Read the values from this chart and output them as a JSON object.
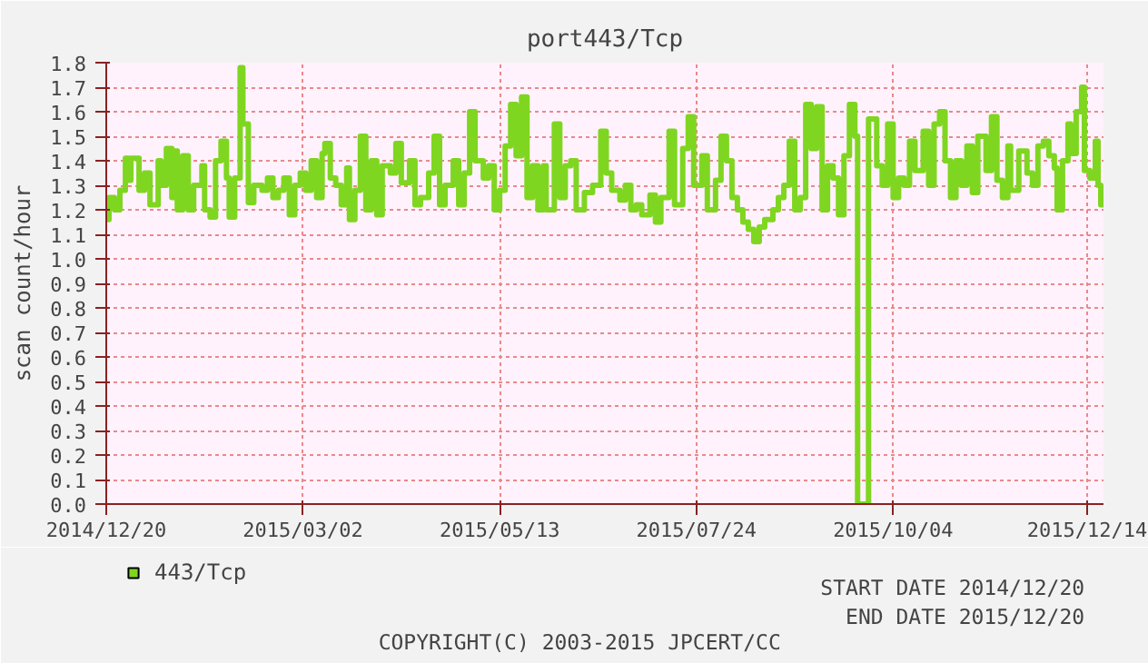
{
  "chart_data": {
    "type": "step",
    "title": "port443/Tcp",
    "ylabel": "scan count/hour",
    "xlim": [
      "2014-12-20",
      "2015-12-20"
    ],
    "xticks": [
      {
        "value": "2014-12-20",
        "label": "2014/12/20"
      },
      {
        "value": "2015-03-02",
        "label": "2015/03/02"
      },
      {
        "value": "2015-05-13",
        "label": "2015/05/13"
      },
      {
        "value": "2015-07-24",
        "label": "2015/07/24"
      },
      {
        "value": "2015-10-04",
        "label": "2015/10/04"
      },
      {
        "value": "2015-12-14",
        "label": "2015/12/14"
      }
    ],
    "ylim": [
      0,
      1.8
    ],
    "yticks": [
      {
        "value": 0,
        "label": "0.0"
      },
      0.1,
      0.2,
      0.3,
      0.4,
      0.5,
      0.6,
      0.7,
      0.8,
      0.9,
      {
        "value": 1,
        "label": "1.0"
      },
      1.1,
      1.2,
      1.3,
      1.4,
      1.5,
      1.6,
      1.7,
      1.8
    ],
    "grid": true,
    "legend": "bottom",
    "annotations": [
      "START DATE 2014/12/20",
      "END DATE 2015/12/20",
      "COPYRIGHT(C) 2003-2015 JPCERT/CC"
    ],
    "series": [
      {
        "name": "443/Tcp",
        "color": "#7fd620",
        "x": [
          "2014-12-20",
          "2014-12-21",
          "2014-12-23",
          "2014-12-25",
          "2014-12-27",
          "2014-12-28",
          "2014-12-29",
          "2015-01-01",
          "2015-01-03",
          "2015-01-05",
          "2015-01-08",
          "2015-01-09",
          "2015-01-11",
          "2015-01-13",
          "2015-01-14",
          "2015-01-15",
          "2015-01-17",
          "2015-01-19",
          "2015-01-21",
          "2015-01-24",
          "2015-01-25",
          "2015-01-27",
          "2015-01-29",
          "2015-01-31",
          "2015-02-02",
          "2015-02-03",
          "2015-02-05",
          "2015-02-07",
          "2015-02-08",
          "2015-02-10",
          "2015-02-12",
          "2015-02-15",
          "2015-02-17",
          "2015-02-19",
          "2015-02-21",
          "2015-02-23",
          "2015-02-25",
          "2015-02-27",
          "2015-03-01",
          "2015-03-03",
          "2015-03-05",
          "2015-03-07",
          "2015-03-09",
          "2015-03-10",
          "2015-03-12",
          "2015-03-14",
          "2015-03-16",
          "2015-03-18",
          "2015-03-19",
          "2015-03-21",
          "2015-03-23",
          "2015-03-25",
          "2015-03-27",
          "2015-03-29",
          "2015-03-31",
          "2015-04-03",
          "2015-04-05",
          "2015-04-07",
          "2015-04-10",
          "2015-04-12",
          "2015-04-14",
          "2015-04-17",
          "2015-04-19",
          "2015-04-21",
          "2015-04-23",
          "2015-04-26",
          "2015-04-28",
          "2015-04-30",
          "2015-05-02",
          "2015-05-04",
          "2015-05-07",
          "2015-05-09",
          "2015-05-11",
          "2015-05-13",
          "2015-05-15",
          "2015-05-17",
          "2015-05-19",
          "2015-05-21",
          "2015-05-23",
          "2015-05-25",
          "2015-05-27",
          "2015-05-29",
          "2015-05-30",
          "2015-06-02",
          "2015-06-04",
          "2015-06-06",
          "2015-06-08",
          "2015-06-10",
          "2015-06-13",
          "2015-06-16",
          "2015-06-19",
          "2015-06-21",
          "2015-06-23",
          "2015-06-26",
          "2015-06-28",
          "2015-06-30",
          "2015-07-02",
          "2015-07-04",
          "2015-07-07",
          "2015-07-09",
          "2015-07-11",
          "2015-07-14",
          "2015-07-16",
          "2015-07-19",
          "2015-07-21",
          "2015-07-23",
          "2015-07-26",
          "2015-07-28",
          "2015-07-31",
          "2015-08-02",
          "2015-08-04",
          "2015-08-06",
          "2015-08-08",
          "2015-08-10",
          "2015-08-12",
          "2015-08-14",
          "2015-08-16",
          "2015-08-18",
          "2015-08-21",
          "2015-08-23",
          "2015-08-25",
          "2015-08-27",
          "2015-08-29",
          "2015-08-31",
          "2015-09-02",
          "2015-09-04",
          "2015-09-06",
          "2015-09-08",
          "2015-09-10",
          "2015-09-12",
          "2015-09-14",
          "2015-09-16",
          "2015-09-18",
          "2015-09-20",
          "2015-09-21",
          "2015-09-25",
          "2015-09-28",
          "2015-09-30",
          "2015-10-02",
          "2015-10-04",
          "2015-10-06",
          "2015-10-08",
          "2015-10-10",
          "2015-10-12",
          "2015-10-15",
          "2015-10-17",
          "2015-10-19",
          "2015-10-21",
          "2015-10-23",
          "2015-10-25",
          "2015-10-27",
          "2015-10-29",
          "2015-10-31",
          "2015-11-02",
          "2015-11-04",
          "2015-11-07",
          "2015-11-09",
          "2015-11-11",
          "2015-11-13",
          "2015-11-15",
          "2015-11-16",
          "2015-11-19",
          "2015-11-22",
          "2015-11-24",
          "2015-11-26",
          "2015-11-28",
          "2015-11-30",
          "2015-12-02",
          "2015-12-03",
          "2015-12-05",
          "2015-12-07",
          "2015-12-08",
          "2015-12-10",
          "2015-12-12",
          "2015-12-13",
          "2015-12-15",
          "2015-12-17",
          "2015-12-18",
          "2015-12-19",
          "2015-12-20"
        ],
        "values": [
          1.16,
          1.25,
          1.2,
          1.28,
          1.41,
          1.32,
          1.41,
          1.28,
          1.35,
          1.22,
          1.4,
          1.3,
          1.45,
          1.25,
          1.44,
          1.2,
          1.42,
          1.2,
          1.3,
          1.38,
          1.2,
          1.17,
          1.4,
          1.48,
          1.33,
          1.17,
          1.33,
          1.78,
          1.55,
          1.23,
          1.3,
          1.28,
          1.33,
          1.25,
          1.28,
          1.33,
          1.18,
          1.3,
          1.35,
          1.28,
          1.4,
          1.25,
          1.43,
          1.47,
          1.33,
          1.3,
          1.22,
          1.37,
          1.16,
          1.28,
          1.5,
          1.2,
          1.4,
          1.18,
          1.38,
          1.35,
          1.47,
          1.31,
          1.4,
          1.22,
          1.25,
          1.35,
          1.5,
          1.22,
          1.3,
          1.4,
          1.22,
          1.35,
          1.6,
          1.4,
          1.33,
          1.38,
          1.2,
          1.28,
          1.46,
          1.63,
          1.42,
          1.66,
          1.25,
          1.38,
          1.2,
          1.38,
          1.2,
          1.55,
          1.25,
          1.38,
          1.4,
          1.2,
          1.27,
          1.3,
          1.52,
          1.35,
          1.28,
          1.24,
          1.3,
          1.2,
          1.22,
          1.18,
          1.26,
          1.15,
          1.25,
          1.52,
          1.22,
          1.45,
          1.58,
          1.3,
          1.42,
          1.2,
          1.32,
          1.5,
          1.4,
          1.25,
          1.2,
          1.15,
          1.12,
          1.07,
          1.13,
          1.16,
          1.2,
          1.25,
          1.3,
          1.48,
          1.2,
          1.25,
          1.63,
          1.45,
          1.62,
          1.2,
          1.38,
          1.33,
          1.18,
          1.42,
          1.63,
          1.5,
          0,
          1.57,
          1.38,
          1.3,
          1.55,
          1.25,
          1.33,
          1.3,
          1.48,
          1.36,
          1.52,
          1.3,
          1.55,
          1.6,
          1.4,
          1.25,
          1.4,
          1.3,
          1.46,
          1.27,
          1.5,
          1.36,
          1.58,
          1.32,
          1.25,
          1.46,
          1.28,
          1.44,
          1.35,
          1.3,
          1.46,
          1.48,
          1.42,
          1.37,
          1.2,
          1.4,
          1.55,
          1.43,
          1.6,
          1.7,
          1.36,
          1.33,
          1.48,
          1.3,
          1.22,
          1.22
        ]
      }
    ]
  }
}
